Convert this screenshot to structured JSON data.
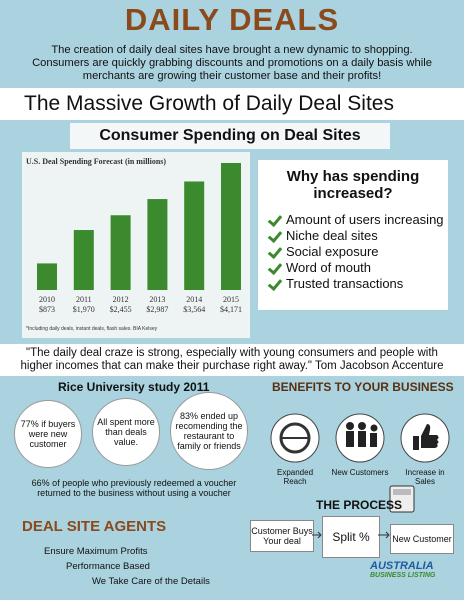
{
  "header": {
    "title": "DAILY DEALS",
    "intro": "The creation of daily deal sites have brought a new dynamic to shopping. Consumers are quickly grabbing discounts and promotions on a daily basis while merchants are growing their customer base and their profits!"
  },
  "banner": "The Massive Growth of Daily Deal Sites",
  "subbanner": "Consumer Spending on Deal Sites",
  "chart_data": {
    "type": "bar",
    "title": "U.S. Deal Spending Forecast (in millions)",
    "categories": [
      "2010",
      "2011",
      "2012",
      "2013",
      "2014",
      "2015"
    ],
    "values": [
      873,
      1970,
      2455,
      2987,
      3564,
      4171
    ],
    "value_labels": [
      "$873",
      "$1,970",
      "$2,455",
      "$2,987",
      "$3,564",
      "$4,171"
    ],
    "color": "#3c8a2e",
    "note": "*Including daily deals, instant deals, flash sales. BIA Kelsey"
  },
  "reasons": {
    "title": "Why has spending increased?",
    "items": [
      "Amount of users increasing",
      "Niche deal sites",
      "Social exposure",
      "Word of mouth",
      "Trusted transactions"
    ]
  },
  "quote": "\"The daily deal craze is strong, especially with young consumers and people with higher incomes that can make their purchase right away.\" Tom Jacobson Accenture",
  "study": {
    "title": "Rice University study 2011",
    "stats": [
      "77% if buyers were new customer",
      "All spent more than deals value.",
      "83% ended up recomending the restaurant to family or friends"
    ],
    "footer": "66% of people who previously redeemed a voucher returned to the business without using a voucher"
  },
  "benefits": {
    "title": "BENEFITS TO YOUR BUSINESS",
    "items": [
      "Expanded Reach",
      "New Customers",
      "Increase in Sales"
    ]
  },
  "process": {
    "title": "THE PROCESS",
    "steps": [
      "Customer Buys Your deal",
      "Split %",
      "New Customer"
    ]
  },
  "agents": {
    "title": "DEAL SITE AGENTS",
    "items": [
      "Ensure Maximum Profits",
      "Performance Based",
      "We Take Care of the Details"
    ]
  },
  "logo": {
    "name": "AUSTRALIA",
    "tagline": "BUSINESS LISTING"
  }
}
